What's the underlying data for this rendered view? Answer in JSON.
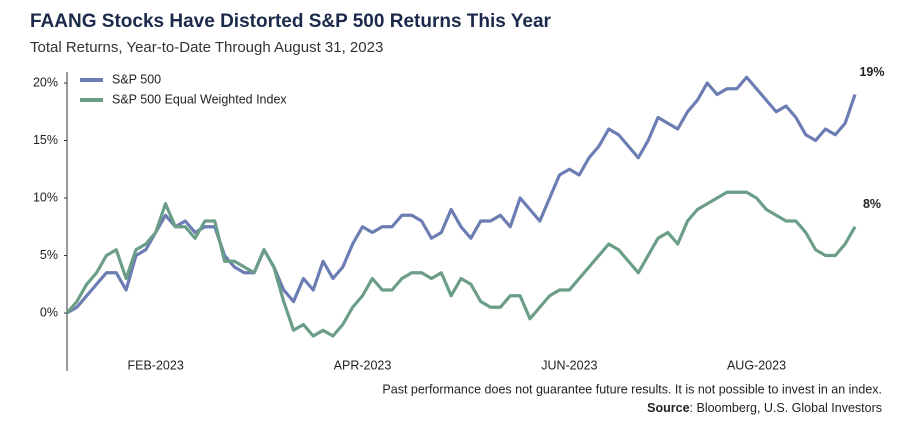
{
  "chart_data": {
    "type": "line",
    "title": "FAANG Stocks Have Distorted S&P 500 Returns This Year",
    "subtitle": "Total Returns, Year-to-Date Through August 31, 2023",
    "note": "Past performance does not guarantee future results. It is not possible to invest in an index.",
    "source_label": "Source",
    "source_text": ": Bloomberg, U.S. Global Investors",
    "legend": "upper left",
    "grid": false,
    "ylim": [
      -5,
      21
    ],
    "yticks": [
      {
        "value": 0,
        "label": "0%"
      },
      {
        "value": 5,
        "label": "5%"
      },
      {
        "value": 10,
        "label": "10%"
      },
      {
        "value": 15,
        "label": "15%"
      },
      {
        "value": 20,
        "label": "20%"
      }
    ],
    "categories": [
      null,
      null,
      null,
      null,
      null,
      null,
      null,
      null,
      null,
      "FEB-2023",
      null,
      null,
      null,
      null,
      null,
      null,
      null,
      null,
      null,
      null,
      null,
      null,
      null,
      null,
      null,
      null,
      null,
      null,
      null,
      null,
      "APR-2023",
      null,
      null,
      null,
      null,
      null,
      null,
      null,
      null,
      null,
      null,
      null,
      null,
      null,
      null,
      null,
      null,
      null,
      null,
      null,
      null,
      "JUN-2023",
      null,
      null,
      null,
      null,
      null,
      null,
      null,
      null,
      null,
      null,
      null,
      null,
      null,
      null,
      null,
      null,
      null,
      null,
      "AUG-2023",
      null,
      null,
      null,
      null,
      null,
      null,
      null,
      null,
      null,
      null
    ],
    "series": [
      {
        "name": "S&P 500",
        "color": "#6b7db3",
        "end_label": "19%",
        "values": [
          0,
          0.5,
          1.5,
          2.5,
          3.5,
          3.5,
          2,
          5,
          5.5,
          7,
          8.5,
          7.5,
          8,
          7,
          7.5,
          7.5,
          5,
          4,
          3.5,
          3.5,
          5.5,
          4,
          2,
          1,
          3,
          2,
          4.5,
          3,
          4,
          6,
          7.5,
          7,
          7.5,
          7.5,
          8.5,
          8.5,
          8,
          6.5,
          7,
          9,
          7.5,
          6.5,
          8,
          8,
          8.5,
          7.5,
          10,
          9,
          8,
          10,
          12,
          12.5,
          12,
          13.5,
          14.5,
          16,
          15.5,
          14.5,
          13.5,
          15,
          17,
          16.5,
          16,
          17.5,
          18.5,
          20,
          19,
          19.5,
          19.5,
          20.5,
          19.5,
          18.5,
          17.5,
          18,
          17,
          15.5,
          15,
          16,
          15.5,
          16.5,
          19
        ]
      },
      {
        "name": "S&P 500 Equal Weighted Index",
        "color": "#6a9e86",
        "end_label": "8%",
        "values": [
          0,
          1,
          2.5,
          3.5,
          5,
          5.5,
          3,
          5.5,
          6,
          7,
          9.5,
          7.5,
          7.5,
          6.5,
          8,
          8,
          4.5,
          4.5,
          4,
          3.5,
          5.5,
          4,
          1,
          -1.5,
          -1,
          -2,
          -1.5,
          -2,
          -1,
          0.5,
          1.5,
          3,
          2,
          2,
          3,
          3.5,
          3.5,
          3,
          3.5,
          1.5,
          3,
          2.5,
          1,
          0.5,
          0.5,
          1.5,
          1.5,
          -0.5,
          0.5,
          1.5,
          2,
          2,
          3,
          4,
          5,
          6,
          5.5,
          4.5,
          3.5,
          5,
          6.5,
          7,
          6,
          8,
          9,
          9.5,
          10,
          10.5,
          10.5,
          10.5,
          10,
          9,
          8.5,
          8,
          8,
          7,
          5.5,
          5,
          5,
          6,
          7.5
        ]
      }
    ]
  }
}
